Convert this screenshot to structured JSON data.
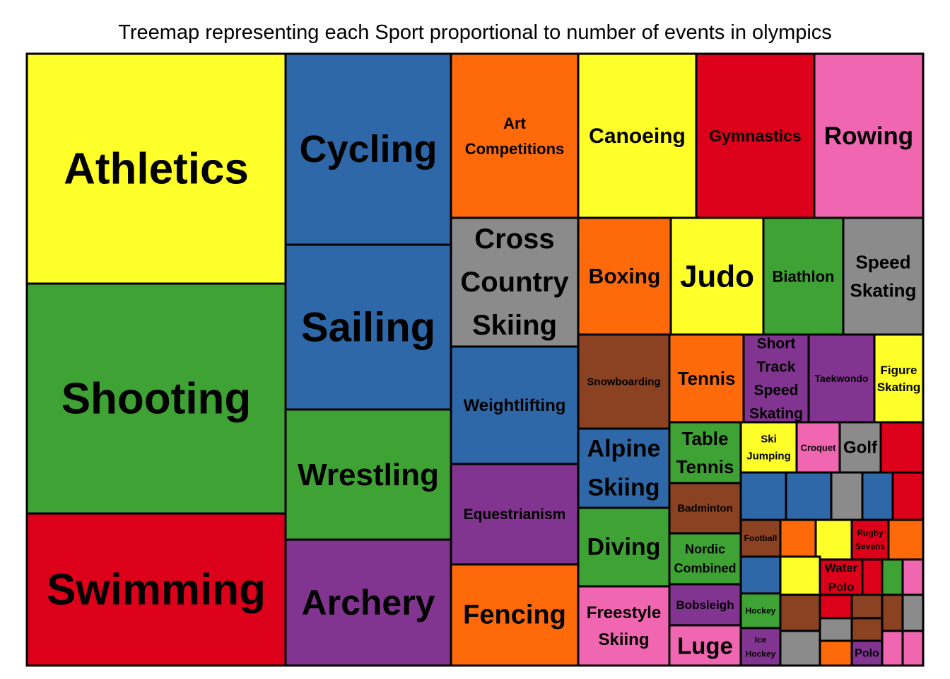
{
  "chart_data": {
    "type": "treemap",
    "title": "Treemap representing each Sport proportional to number of events in olympics",
    "colors": {
      "yellow": "#ffff29",
      "green": "#3fa235",
      "red": "#dd001b",
      "blue": "#2e68a8",
      "purple": "#823590",
      "orange": "#fe6a0a",
      "gray": "#8b8b8b",
      "pink": "#f066b0",
      "brown": "#8a4223"
    },
    "tiles": [
      {
        "label": "Athletics",
        "value": 85,
        "color": "yellow"
      },
      {
        "label": "Shooting",
        "value": 85,
        "color": "green"
      },
      {
        "label": "Swimming",
        "value": 56,
        "color": "red"
      },
      {
        "label": "Cycling",
        "value": 53,
        "color": "blue"
      },
      {
        "label": "Sailing",
        "value": 46,
        "color": "blue"
      },
      {
        "label": "Wrestling",
        "value": 36,
        "color": "green"
      },
      {
        "label": "Archery",
        "value": 35,
        "color": "purple"
      },
      {
        "label": "Art Competitions",
        "value": 35,
        "color": "orange"
      },
      {
        "label": "Cross Country Skiing",
        "value": 18,
        "color": "gray"
      },
      {
        "label": "Weightlifting",
        "value": 20,
        "color": "blue"
      },
      {
        "label": "Equestrianism",
        "value": 17,
        "color": "purple"
      },
      {
        "label": "Fencing",
        "value": 17,
        "color": "orange"
      },
      {
        "label": "Canoeing",
        "value": 23,
        "color": "yellow"
      },
      {
        "label": "Gymnastics",
        "value": 23,
        "color": "red"
      },
      {
        "label": "Rowing",
        "value": 22,
        "color": "pink"
      },
      {
        "label": "Boxing",
        "value": 14,
        "color": "orange"
      },
      {
        "label": "Judo",
        "value": 14,
        "color": "yellow"
      },
      {
        "label": "Biathlon",
        "value": 12,
        "color": "green"
      },
      {
        "label": "Speed Skating",
        "value": 12,
        "color": "gray"
      },
      {
        "label": "Snowboarding",
        "value": 11,
        "color": "brown"
      },
      {
        "label": "Tennis",
        "value": 9,
        "color": "orange"
      },
      {
        "label": "Short Track Speed Skating",
        "value": 8,
        "color": "purple"
      },
      {
        "label": "Taekwondo",
        "value": 8,
        "color": "purple"
      },
      {
        "label": "Figure Skating",
        "value": 5,
        "color": "yellow"
      },
      {
        "label": "Alpine Skiing",
        "value": 9,
        "color": "blue"
      },
      {
        "label": "Diving",
        "value": 9,
        "color": "green"
      },
      {
        "label": "Freestyle Skiing",
        "value": 9,
        "color": "pink"
      },
      {
        "label": "Table Tennis",
        "value": 5,
        "color": "green"
      },
      {
        "label": "Badminton",
        "value": 4,
        "color": "brown"
      },
      {
        "label": "Nordic Combined",
        "value": 5,
        "color": "green"
      },
      {
        "label": "Bobsleigh",
        "value": 3,
        "color": "purple"
      },
      {
        "label": "Luge",
        "value": 3,
        "color": "pink"
      },
      {
        "label": "Ski Jumping",
        "value": 3,
        "color": "yellow"
      },
      {
        "label": "Croquet",
        "value": 2,
        "color": "pink"
      },
      {
        "label": "Golf",
        "value": 2,
        "color": "gray"
      },
      {
        "label": "Football",
        "value": 2,
        "color": "brown"
      },
      {
        "label": "Rugby Sevens",
        "value": 2,
        "color": "red"
      },
      {
        "label": "Water Polo",
        "value": 2,
        "color": "red"
      },
      {
        "label": "Hockey",
        "value": 2,
        "color": "green"
      },
      {
        "label": "Ice Hockey",
        "value": 2,
        "color": "purple"
      },
      {
        "label": "Polo",
        "value": 1,
        "color": "purple"
      },
      {
        "label": "",
        "value": 2,
        "color": "red"
      },
      {
        "label": "",
        "value": 2,
        "color": "blue"
      },
      {
        "label": "",
        "value": 2,
        "color": "blue"
      },
      {
        "label": "",
        "value": 2,
        "color": "gray"
      },
      {
        "label": "",
        "value": 2,
        "color": "blue"
      },
      {
        "label": "",
        "value": 2,
        "color": "red"
      },
      {
        "label": "",
        "value": 2,
        "color": "orange"
      },
      {
        "label": "",
        "value": 2,
        "color": "yellow"
      },
      {
        "label": "",
        "value": 2,
        "color": "orange"
      },
      {
        "label": "",
        "value": 2,
        "color": "blue"
      },
      {
        "label": "",
        "value": 2,
        "color": "yellow"
      },
      {
        "label": "",
        "value": 1,
        "color": "red"
      },
      {
        "label": "",
        "value": 1,
        "color": "green"
      },
      {
        "label": "",
        "value": 1,
        "color": "pink"
      },
      {
        "label": "",
        "value": 2,
        "color": "brown"
      },
      {
        "label": "",
        "value": 1,
        "color": "red"
      },
      {
        "label": "",
        "value": 1,
        "color": "brown"
      },
      {
        "label": "",
        "value": 1,
        "color": "brown"
      },
      {
        "label": "",
        "value": 1,
        "color": "gray"
      },
      {
        "label": "",
        "value": 1,
        "color": "brown"
      },
      {
        "label": "",
        "value": 1,
        "color": "gray"
      },
      {
        "label": "",
        "value": 2,
        "color": "gray"
      },
      {
        "label": "",
        "value": 1,
        "color": "orange"
      },
      {
        "label": "",
        "value": 1,
        "color": "pink"
      },
      {
        "label": "",
        "value": 1,
        "color": "pink"
      }
    ]
  }
}
